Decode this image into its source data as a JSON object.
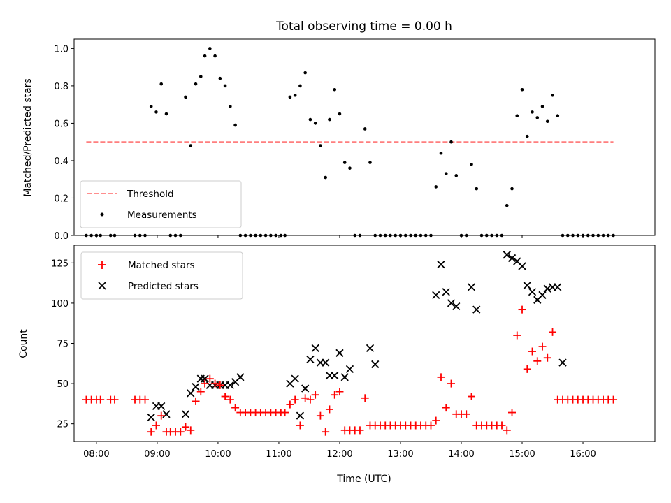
{
  "chart_data": [
    {
      "type": "scatter",
      "title": "Total observing time = 0.00 h",
      "xlabel": "",
      "ylabel": "Matched/Predicted stars",
      "xlim": [
        "07:38",
        "17:11"
      ],
      "ylim": [
        0,
        1.05
      ],
      "yticks": [
        "0.0",
        "0.2",
        "0.4",
        "0.6",
        "0.8",
        "1.0"
      ],
      "grid": false,
      "legend": {
        "placement": "lower-left"
      },
      "threshold": {
        "name": "Threshold",
        "value": 0.5,
        "x_start": "07:50",
        "x_end": "16:30",
        "color": "#ff7f7f"
      },
      "series": [
        {
          "name": "Measurements",
          "color": "#000000",
          "x": [
            "07:50",
            "07:55",
            "08:00",
            "08:04",
            "08:14",
            "08:18",
            "08:38",
            "08:43",
            "08:48",
            "08:54",
            "08:59",
            "09:04",
            "09:09",
            "09:13",
            "09:18",
            "09:23",
            "09:28",
            "09:33",
            "09:38",
            "09:43",
            "09:47",
            "09:52",
            "09:57",
            "10:02",
            "10:07",
            "10:12",
            "10:17",
            "10:22",
            "10:27",
            "10:32",
            "10:37",
            "10:42",
            "10:47",
            "10:52",
            "10:57",
            "11:02",
            "11:06",
            "11:11",
            "11:16",
            "11:21",
            "11:26",
            "11:31",
            "11:36",
            "11:41",
            "11:46",
            "11:50",
            "11:55",
            "12:00",
            "12:05",
            "12:10",
            "12:15",
            "12:20",
            "12:25",
            "12:30",
            "12:35",
            "12:40",
            "12:45",
            "12:50",
            "12:55",
            "13:00",
            "13:05",
            "13:10",
            "13:15",
            "13:20",
            "13:25",
            "13:30",
            "13:35",
            "13:40",
            "13:45",
            "13:50",
            "13:55",
            "14:00",
            "14:05",
            "14:10",
            "14:15",
            "14:20",
            "14:25",
            "14:30",
            "14:35",
            "14:40",
            "14:45",
            "14:50",
            "14:55",
            "15:00",
            "15:05",
            "15:10",
            "15:15",
            "15:20",
            "15:25",
            "15:30",
            "15:35",
            "15:40",
            "15:45",
            "15:50",
            "15:55",
            "16:00",
            "16:05",
            "16:10",
            "16:15",
            "16:20",
            "16:25",
            "16:30"
          ],
          "y": [
            0,
            0,
            0,
            0,
            0,
            0,
            0,
            0,
            0,
            0.69,
            0.66,
            0.81,
            0.65,
            0,
            0,
            0,
            0.74,
            0.48,
            0.81,
            0.85,
            0.96,
            1.0,
            0.96,
            0.84,
            0.8,
            0.69,
            0.59,
            0,
            0,
            0,
            0,
            0,
            0,
            0,
            0,
            0,
            0,
            0.74,
            0.75,
            0.8,
            0.87,
            0.62,
            0.6,
            0.48,
            0.31,
            0.62,
            0.78,
            0.65,
            0.39,
            0.36,
            0,
            0,
            0.57,
            0.39,
            0,
            0,
            0,
            0,
            0,
            0,
            0,
            0,
            0,
            0,
            0,
            0,
            0.26,
            0.44,
            0.33,
            0.5,
            0.32,
            0,
            0,
            0.38,
            0.25,
            0,
            0,
            0,
            0,
            0,
            0.16,
            0.25,
            0.64,
            0.78,
            0.53,
            0.66,
            0.63,
            0.69,
            0.61,
            0.75,
            0.64,
            0,
            0,
            0,
            0,
            0,
            0,
            0,
            0,
            0,
            0,
            0
          ]
        }
      ]
    },
    {
      "type": "scatter",
      "title": "",
      "xlabel": "Time (UTC)",
      "ylabel": "Count",
      "xlim": [
        "07:38",
        "17:11"
      ],
      "ylim": [
        14,
        136
      ],
      "yticks": [
        "25",
        "50",
        "75",
        "100",
        "125"
      ],
      "xticks": [
        "08:00",
        "09:00",
        "10:00",
        "11:00",
        "12:00",
        "13:00",
        "14:00",
        "15:00",
        "16:00"
      ],
      "grid": false,
      "legend": {
        "placement": "top-left"
      },
      "series": [
        {
          "name": "Matched stars",
          "marker": "plus",
          "color": "#ff0000",
          "x": [
            "07:50",
            "07:55",
            "08:00",
            "08:04",
            "08:14",
            "08:18",
            "08:38",
            "08:43",
            "08:48",
            "08:54",
            "08:59",
            "09:04",
            "09:09",
            "09:13",
            "09:18",
            "09:23",
            "09:28",
            "09:33",
            "09:38",
            "09:43",
            "09:47",
            "09:52",
            "09:57",
            "10:02",
            "10:07",
            "10:12",
            "10:17",
            "10:22",
            "10:27",
            "10:32",
            "10:37",
            "10:42",
            "10:47",
            "10:52",
            "10:57",
            "11:02",
            "11:06",
            "11:11",
            "11:16",
            "11:21",
            "11:26",
            "11:31",
            "11:36",
            "11:41",
            "11:46",
            "11:50",
            "11:55",
            "12:00",
            "12:05",
            "12:10",
            "12:15",
            "12:20",
            "12:25",
            "12:30",
            "12:35",
            "12:40",
            "12:45",
            "12:50",
            "12:55",
            "13:00",
            "13:05",
            "13:10",
            "13:15",
            "13:20",
            "13:25",
            "13:30",
            "13:35",
            "13:40",
            "13:45",
            "13:50",
            "13:55",
            "14:00",
            "14:05",
            "14:10",
            "14:15",
            "14:20",
            "14:25",
            "14:30",
            "14:35",
            "14:40",
            "14:45",
            "14:50",
            "14:55",
            "15:00",
            "15:05",
            "15:10",
            "15:15",
            "15:20",
            "15:25",
            "15:30",
            "15:35",
            "15:40",
            "15:45",
            "15:50",
            "15:55",
            "16:00",
            "16:05",
            "16:10",
            "16:15",
            "16:20",
            "16:25",
            "16:30"
          ],
          "y": [
            40,
            40,
            40,
            40,
            40,
            40,
            40,
            40,
            40,
            20,
            24,
            30,
            20,
            20,
            20,
            20,
            23,
            21,
            39,
            45,
            50,
            53,
            50,
            49,
            42,
            40,
            35,
            32,
            32,
            32,
            32,
            32,
            32,
            32,
            32,
            32,
            32,
            37,
            40,
            24,
            41,
            40,
            43,
            30,
            20,
            34,
            43,
            45,
            21,
            21,
            21,
            21,
            41,
            24,
            24,
            24,
            24,
            24,
            24,
            24,
            24,
            24,
            24,
            24,
            24,
            24,
            27,
            54,
            35,
            50,
            31,
            31,
            31,
            42,
            24,
            24,
            24,
            24,
            24,
            24,
            21,
            32,
            80,
            96,
            59,
            70,
            64,
            73,
            66,
            82,
            40,
            40,
            40,
            40,
            40,
            40,
            40,
            40,
            40,
            40,
            40,
            40
          ]
        },
        {
          "name": "Predicted stars",
          "marker": "x",
          "color": "#000000",
          "x": [
            "08:54",
            "08:59",
            "09:04",
            "09:09",
            "09:28",
            "09:33",
            "09:38",
            "09:43",
            "09:47",
            "09:52",
            "09:57",
            "10:02",
            "10:07",
            "10:12",
            "10:17",
            "10:22",
            "11:11",
            "11:16",
            "11:21",
            "11:26",
            "11:31",
            "11:36",
            "11:41",
            "11:46",
            "11:50",
            "11:55",
            "12:00",
            "12:05",
            "12:10",
            "12:30",
            "12:35",
            "13:35",
            "13:40",
            "13:45",
            "13:50",
            "13:55",
            "14:10",
            "14:15",
            "14:45",
            "14:50",
            "14:55",
            "15:00",
            "15:05",
            "15:10",
            "15:15",
            "15:20",
            "15:25",
            "15:30",
            "15:35",
            "15:40"
          ],
          "y": [
            29,
            36,
            36,
            31,
            31,
            44,
            48,
            53,
            53,
            49,
            49,
            49,
            49,
            49,
            51,
            54,
            50,
            53,
            30,
            47,
            65,
            72,
            63,
            63,
            55,
            55,
            69,
            54,
            59,
            72,
            62,
            105,
            124,
            107,
            100,
            98,
            110,
            96,
            130,
            128,
            126,
            123,
            111,
            107,
            102,
            105,
            109,
            110,
            110,
            63
          ]
        }
      ]
    }
  ]
}
